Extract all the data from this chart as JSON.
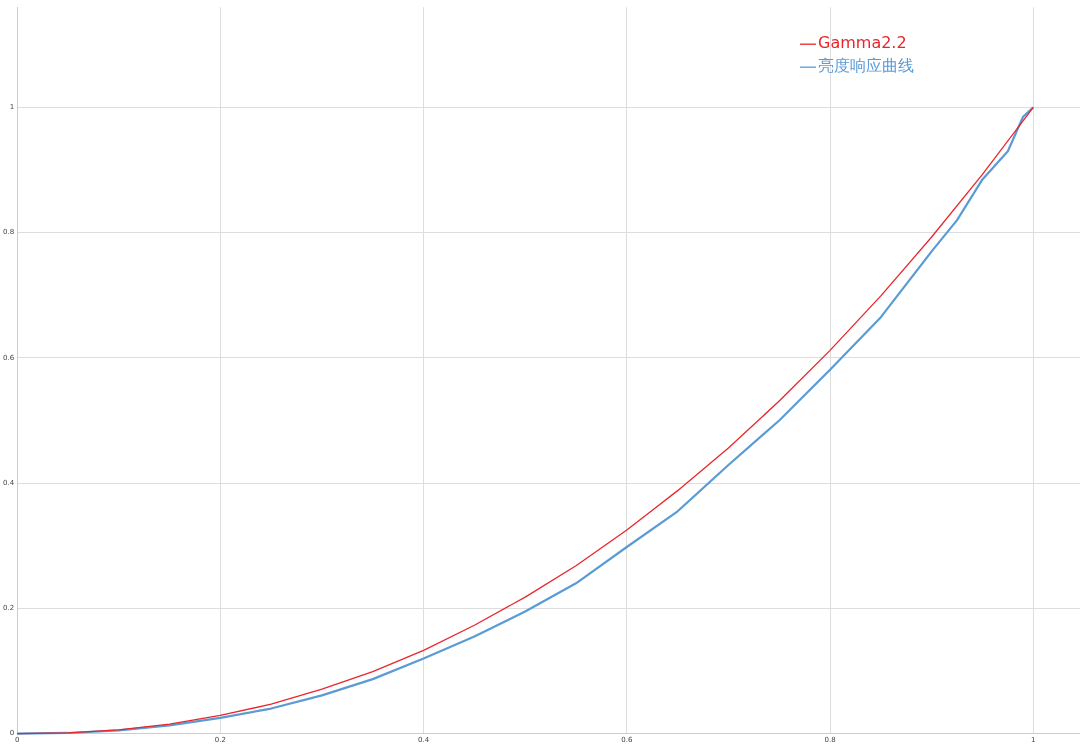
{
  "chart_data": {
    "type": "line",
    "xlim": [
      0,
      1.046
    ],
    "ylim": [
      0,
      1.16
    ],
    "xticks": [
      0,
      0.2,
      0.4,
      0.6,
      0.8,
      1
    ],
    "yticks": [
      0,
      0.2,
      0.4,
      0.6,
      0.8,
      1
    ],
    "grid": true,
    "legend": "top right",
    "marker": "none",
    "line_style": "solid",
    "series": [
      {
        "name": "Gamma2.2",
        "color": "#e8262c",
        "x": [
          0,
          0.05,
          0.1,
          0.15,
          0.2,
          0.25,
          0.3,
          0.35,
          0.4,
          0.45,
          0.5,
          0.55,
          0.6,
          0.65,
          0.7,
          0.75,
          0.8,
          0.85,
          0.9,
          0.95,
          1
        ],
        "values": [
          0,
          0.001,
          0.006,
          0.015,
          0.029,
          0.047,
          0.071,
          0.099,
          0.133,
          0.173,
          0.218,
          0.268,
          0.325,
          0.388,
          0.456,
          0.531,
          0.612,
          0.699,
          0.793,
          0.893,
          1
        ]
      },
      {
        "name": "亮度响应曲线",
        "color": "#5b9bd5",
        "x": [
          0,
          0.05,
          0.1,
          0.15,
          0.2,
          0.25,
          0.3,
          0.35,
          0.4,
          0.45,
          0.5,
          0.55,
          0.6,
          0.65,
          0.7,
          0.75,
          0.8,
          0.85,
          0.9,
          0.925,
          0.95,
          0.965,
          0.975,
          0.99,
          1
        ],
        "values": [
          0,
          0.001,
          0.005,
          0.013,
          0.025,
          0.04,
          0.061,
          0.087,
          0.12,
          0.155,
          0.195,
          0.24,
          0.298,
          0.355,
          0.429,
          0.5,
          0.581,
          0.665,
          0.77,
          0.82,
          0.885,
          0.912,
          0.93,
          0.985,
          1
        ]
      }
    ]
  }
}
